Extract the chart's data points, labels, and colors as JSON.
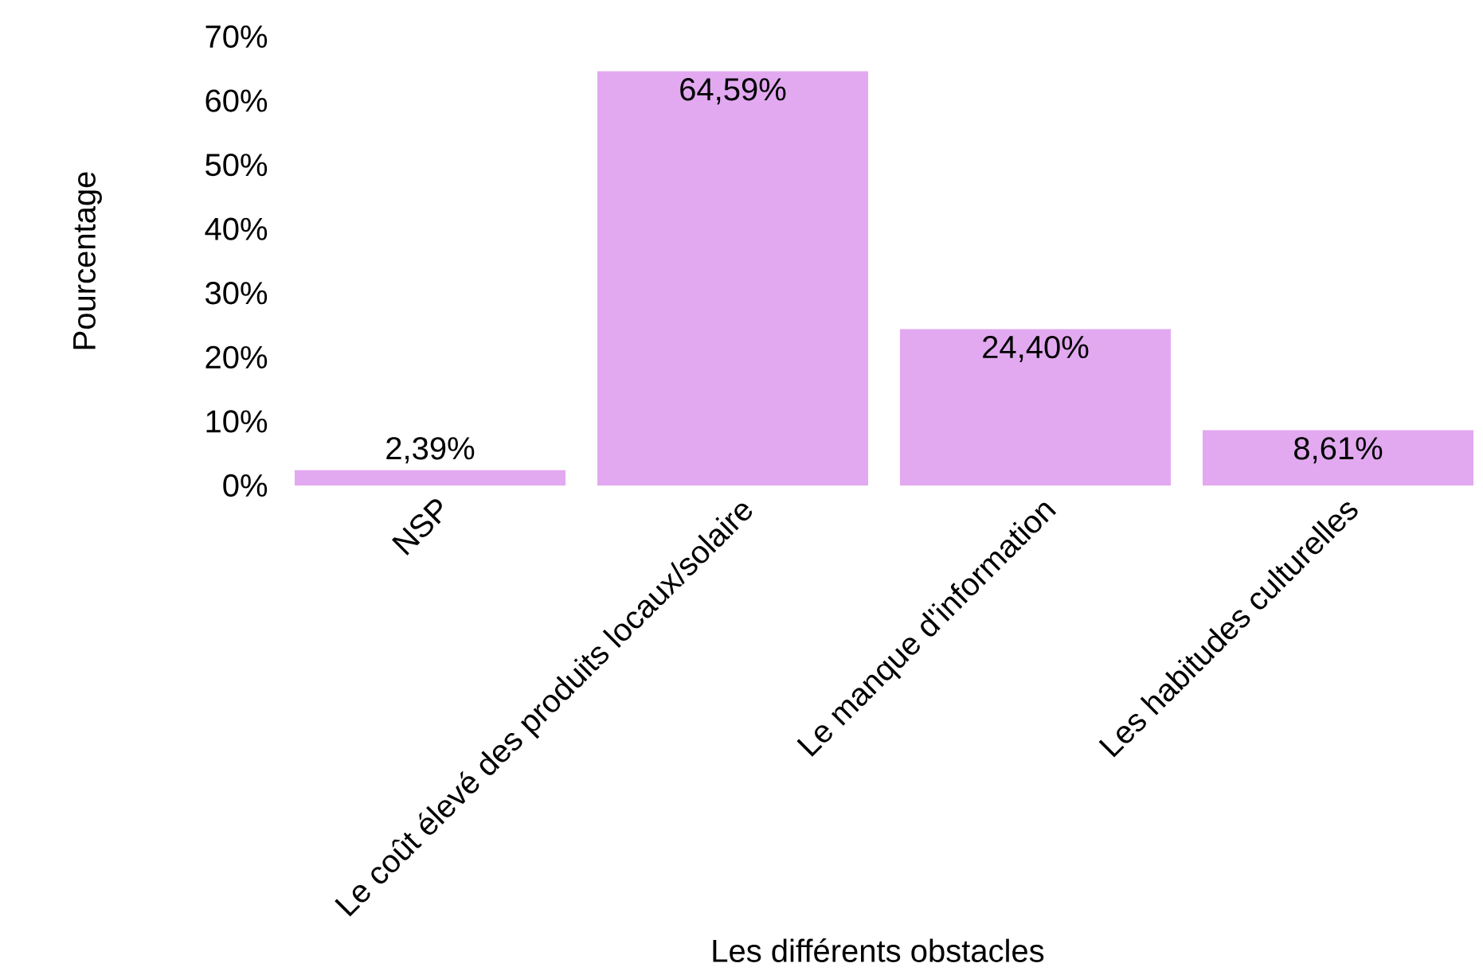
{
  "chart_data": {
    "type": "bar",
    "xlabel": "Les différents obstacles",
    "ylabel": "Pourcentage",
    "categories": [
      "NSP",
      "Le coût élevé des produits locaux/solaire",
      "Le manque d'information",
      "Les habitudes culturelles"
    ],
    "values": [
      2.39,
      64.59,
      24.4,
      8.61
    ],
    "value_labels": [
      "2,39%",
      "64,59%",
      "24,40%",
      "8,61%"
    ],
    "color": "#e2a9f0",
    "ylim": [
      0,
      70
    ],
    "yticks": [
      {
        "value": 0,
        "label": "0%"
      },
      {
        "value": 10,
        "label": "10%"
      },
      {
        "value": 20,
        "label": "20%"
      },
      {
        "value": 30,
        "label": "30%"
      },
      {
        "value": 40,
        "label": "40%"
      },
      {
        "value": 50,
        "label": "50%"
      },
      {
        "value": 60,
        "label": "60%"
      },
      {
        "value": 70,
        "label": "70%"
      }
    ]
  }
}
